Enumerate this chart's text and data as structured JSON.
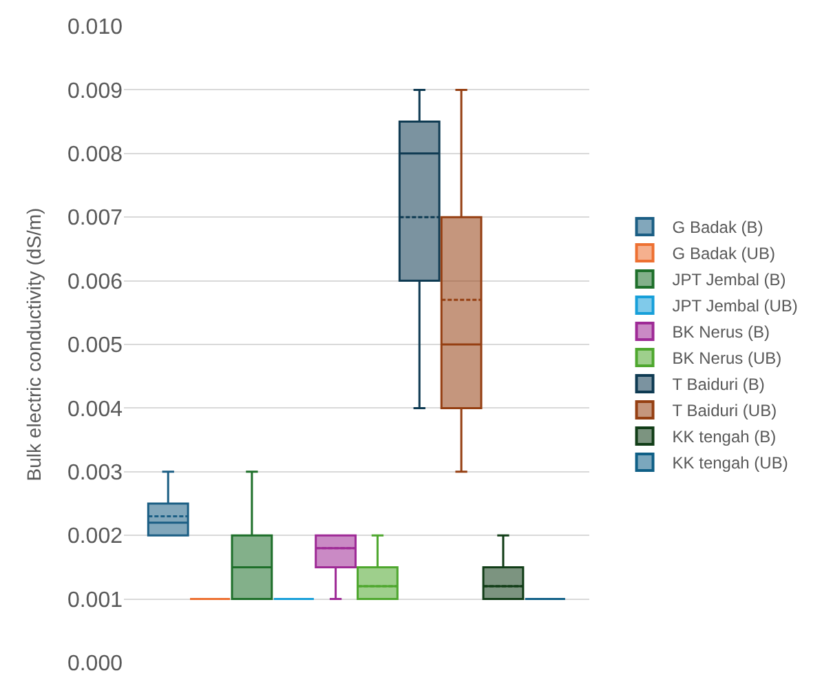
{
  "chart_data": {
    "type": "box",
    "ylabel": "Bulk electric conductivity (dS/m)",
    "categories": [
      null
    ],
    "ylim": [
      0,
      0.01
    ],
    "yticks": [
      {
        "value": 0,
        "label": "0.000"
      },
      {
        "value": 0.001,
        "label": "0.001"
      },
      {
        "value": 0.002,
        "label": "0.002"
      },
      {
        "value": 0.003,
        "label": "0.003"
      },
      {
        "value": 0.004,
        "label": "0.004"
      },
      {
        "value": 0.005,
        "label": "0.005"
      },
      {
        "value": 0.006,
        "label": "0.006"
      },
      {
        "value": 0.007,
        "label": "0.007"
      },
      {
        "value": 0.008,
        "label": "0.008"
      },
      {
        "value": 0.009,
        "label": "0.009"
      },
      {
        "value": 0.01,
        "label": "0.010"
      }
    ],
    "grid": "y",
    "legend": "right",
    "tick_labels": "y",
    "series": [
      {
        "name": "G Badak (B)",
        "color": "#1b5e84",
        "boxes": [
          {
            "low": 0.002,
            "q1": 0.002,
            "median": 0.0022,
            "q3": 0.0025,
            "high": 0.003,
            "mean": 0.0023
          }
        ]
      },
      {
        "name": "G Badak (UB)",
        "color": "#ed7031",
        "boxes": [
          {
            "low": 0.001,
            "q1": 0.001,
            "median": 0.001,
            "q3": 0.001,
            "high": 0.001,
            "mean": 0.001
          }
        ]
      },
      {
        "name": "JPT Jembal (B)",
        "color": "#1e6f2a",
        "boxes": [
          {
            "low": 0.001,
            "q1": 0.001,
            "median": 0.0015,
            "q3": 0.002,
            "high": 0.003,
            "mean": 0.0015
          }
        ]
      },
      {
        "name": "JPT Jembal (UB)",
        "color": "#179fd9",
        "boxes": [
          {
            "low": 0.001,
            "q1": 0.001,
            "median": 0.001,
            "q3": 0.001,
            "high": 0.001,
            "mean": 0.001
          }
        ]
      },
      {
        "name": "BK Nerus (B)",
        "color": "#9e2a96",
        "boxes": [
          {
            "low": 0.001,
            "q1": 0.0015,
            "median": 0.0018,
            "q3": 0.002,
            "high": 0.002,
            "mean": 0.0018
          }
        ]
      },
      {
        "name": "BK Nerus (UB)",
        "color": "#4ea72e",
        "boxes": [
          {
            "low": 0.001,
            "q1": 0.001,
            "median": 0.0012,
            "q3": 0.0015,
            "high": 0.002,
            "mean": 0.0012
          }
        ]
      },
      {
        "name": "T Baiduri (B)",
        "color": "#0e3a52",
        "boxes": [
          {
            "low": 0.004,
            "q1": 0.006,
            "median": 0.008,
            "q3": 0.0085,
            "high": 0.009,
            "mean": 0.007
          }
        ]
      },
      {
        "name": "T Baiduri (UB)",
        "color": "#953f12",
        "boxes": [
          {
            "low": 0.003,
            "q1": 0.004,
            "median": 0.005,
            "q3": 0.007,
            "high": 0.009,
            "mean": 0.0057
          }
        ]
      },
      {
        "name": "KK tengah (B)",
        "color": "#113d17",
        "boxes": [
          {
            "low": 0.001,
            "q1": 0.001,
            "median": 0.0012,
            "q3": 0.0015,
            "high": 0.002,
            "mean": 0.0012
          }
        ]
      },
      {
        "name": "KK tengah (UB)",
        "color": "#0f5f86",
        "boxes": [
          {
            "low": 0.001,
            "q1": 0.001,
            "median": 0.001,
            "q3": 0.001,
            "high": 0.001,
            "mean": 0.001
          }
        ]
      }
    ]
  }
}
